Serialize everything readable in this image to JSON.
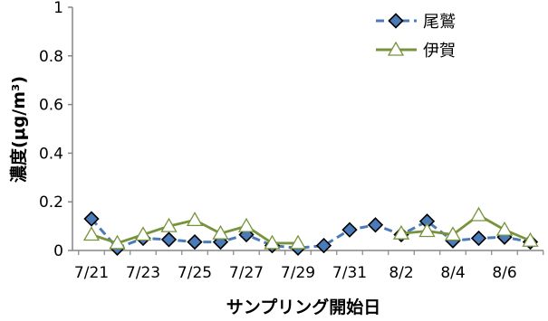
{
  "chart_data": {
    "type": "line",
    "xlabel": "サンプリング開始日",
    "ylabel": "濃度(μg/m³)",
    "ylim": [
      0,
      1
    ],
    "yticks": [
      "0",
      "0.2",
      "0.4",
      "0.6",
      "0.8",
      "1"
    ],
    "x_range": [
      "7/21",
      "8/7"
    ],
    "x_tick_labels": [
      "7/21",
      "7/23",
      "7/25",
      "7/27",
      "7/29",
      "7/31",
      "8/2",
      "8/4",
      "8/6"
    ],
    "legend_position": "top-right",
    "grid": false,
    "series": [
      {
        "name": "尾鷲",
        "color": "#4a7ab8",
        "marker": "diamond",
        "line": "dashed",
        "points": [
          {
            "x": "7/21",
            "y": 0.13
          },
          {
            "x": "7/22",
            "y": 0.01
          },
          {
            "x": "7/23",
            "y": 0.05
          },
          {
            "x": "7/24",
            "y": 0.045
          },
          {
            "x": "7/25",
            "y": 0.035
          },
          {
            "x": "7/26",
            "y": 0.035
          },
          {
            "x": "7/27",
            "y": 0.065
          },
          {
            "x": "7/28",
            "y": 0.02
          },
          {
            "x": "7/29",
            "y": 0.01
          },
          {
            "x": "7/30",
            "y": 0.02
          },
          {
            "x": "7/31",
            "y": 0.085
          },
          {
            "x": "8/1",
            "y": 0.105
          },
          {
            "x": "8/2",
            "y": 0.065
          },
          {
            "x": "8/3",
            "y": 0.12
          },
          {
            "x": "8/4",
            "y": 0.04
          },
          {
            "x": "8/5",
            "y": 0.05
          },
          {
            "x": "8/6",
            "y": 0.055
          },
          {
            "x": "8/7",
            "y": 0.035
          }
        ]
      },
      {
        "name": "伊賀",
        "color": "#77933c",
        "marker": "triangle",
        "line": "solid",
        "points": [
          {
            "x": "7/21",
            "y": 0.065
          },
          {
            "x": "7/22",
            "y": 0.03
          },
          {
            "x": "7/23",
            "y": 0.065
          },
          {
            "x": "7/24",
            "y": 0.1
          },
          {
            "x": "7/25",
            "y": 0.125
          },
          {
            "x": "7/26",
            "y": 0.07
          },
          {
            "x": "7/27",
            "y": 0.1
          },
          {
            "x": "7/28",
            "y": 0.03
          },
          {
            "x": "7/29",
            "y": 0.03
          },
          {
            "x": "8/2",
            "y": 0.07
          },
          {
            "x": "8/3",
            "y": 0.08
          },
          {
            "x": "8/4",
            "y": 0.065
          },
          {
            "x": "8/5",
            "y": 0.145
          },
          {
            "x": "8/6",
            "y": 0.085
          },
          {
            "x": "8/7",
            "y": 0.04
          }
        ]
      }
    ]
  }
}
